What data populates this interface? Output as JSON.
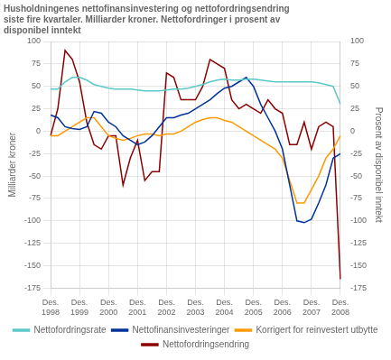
{
  "chart_data": {
    "type": "line",
    "title": "Husholdningenes nettofinansinvestering og nettofordringsendring\nsiste fire kvartaler. Milliarder kroner. Nettofordringer i prosent av\ndisponibel inntekt",
    "y_label": "Milliarder kroner",
    "y2_label": "Prosent av disponibel inntekt",
    "categories": [
      "Des.\n1998",
      null,
      null,
      null,
      "Des.\n1999",
      null,
      null,
      null,
      "Des.\n2000",
      null,
      null,
      null,
      "Des.\n2001",
      null,
      null,
      null,
      "Des.\n2002",
      null,
      null,
      null,
      "Des.\n2003",
      null,
      null,
      null,
      "Des.\n2004",
      null,
      null,
      null,
      "Des.\n2005",
      null,
      null,
      null,
      "Des.\n2006",
      null,
      null,
      null,
      "Des.\n2007",
      null,
      null,
      null,
      "Des.\n2008"
    ],
    "ylim": [
      -175,
      100
    ],
    "yticks": [
      -175,
      -150,
      -125,
      -100,
      -75,
      -50,
      -25,
      0,
      25,
      50,
      75,
      100
    ],
    "y2lim": [
      -175,
      100
    ],
    "y2ticks": [
      -175,
      -150,
      -125,
      -100,
      -75,
      -50,
      -25,
      0,
      25,
      50,
      75,
      100
    ],
    "grid": true,
    "legend": "bottom",
    "series": [
      {
        "name": "Nettofordringsrate",
        "color": "#5BC8C8",
        "values": [
          47,
          47,
          55,
          60,
          60,
          57,
          52,
          50,
          48,
          47,
          47,
          47,
          46,
          45,
          45,
          45,
          46,
          47,
          47,
          48,
          50,
          52,
          55,
          57,
          58,
          57,
          57,
          58,
          58,
          57,
          56,
          55,
          55,
          55,
          55,
          55,
          55,
          54,
          52,
          50,
          30
        ]
      },
      {
        "name": "Nettofinansinvesteringer",
        "color": "#003399",
        "values": [
          18,
          15,
          5,
          3,
          2,
          5,
          22,
          20,
          10,
          5,
          -5,
          -10,
          -15,
          -12,
          -5,
          5,
          15,
          15,
          18,
          20,
          25,
          30,
          35,
          42,
          48,
          50,
          55,
          60,
          50,
          30,
          15,
          0,
          -20,
          -60,
          -100,
          -102,
          -98,
          -80,
          -60,
          -30,
          -25
        ]
      },
      {
        "name": "Korrigert for reinvestert utbytte",
        "color": "#FF9900",
        "values": [
          -5,
          -5,
          0,
          5,
          10,
          15,
          15,
          5,
          -5,
          -8,
          -10,
          -8,
          -5,
          -3,
          -3,
          -5,
          -3,
          -3,
          0,
          5,
          10,
          13,
          15,
          15,
          12,
          10,
          5,
          0,
          -5,
          -10,
          -15,
          -20,
          -30,
          -55,
          -80,
          -80,
          -65,
          -50,
          -30,
          -20,
          -5
        ]
      },
      {
        "name": "Nettofordringsendring",
        "color": "#8B0000",
        "values": [
          -5,
          25,
          90,
          80,
          55,
          10,
          -15,
          -20,
          -5,
          -5,
          -60,
          -30,
          -10,
          -55,
          -45,
          -45,
          65,
          60,
          35,
          35,
          35,
          50,
          80,
          75,
          70,
          35,
          25,
          30,
          25,
          20,
          35,
          25,
          20,
          -15,
          -15,
          10,
          -20,
          5,
          10,
          5,
          -165
        ]
      }
    ]
  }
}
